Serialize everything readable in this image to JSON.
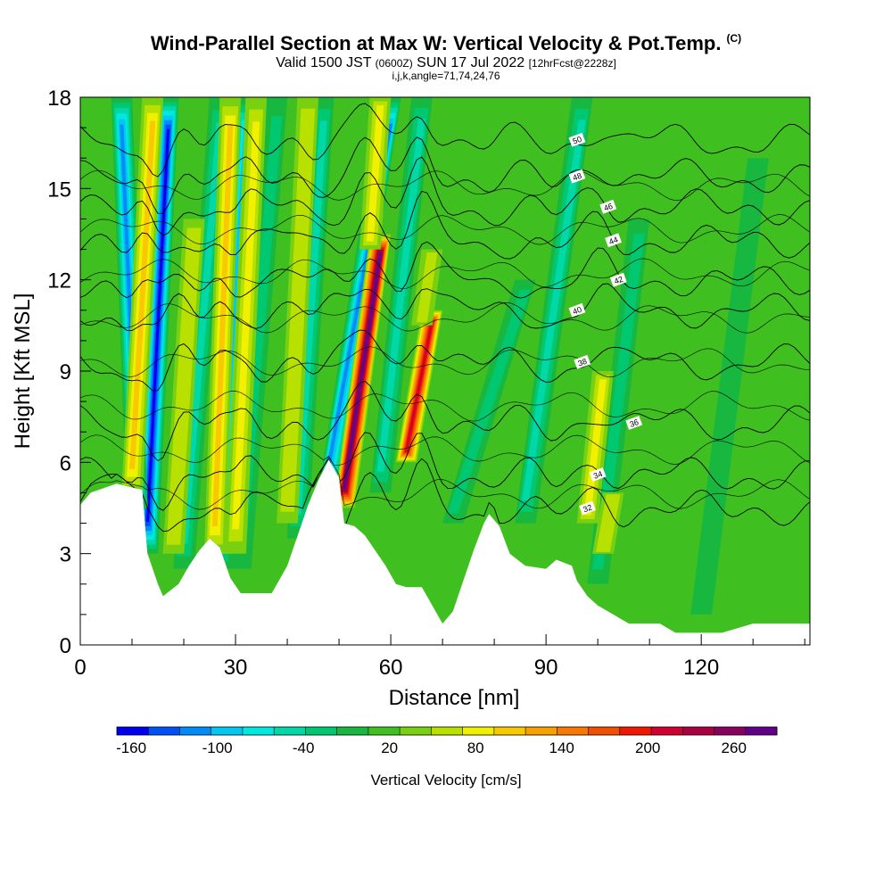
{
  "title": "Wind-Parallel Section at Max W: Vertical Velocity & Pot.Temp.",
  "title_tag": "(C)",
  "subtitle": {
    "valid_a": "Valid 1500 JST",
    "zulu": "(0600Z)",
    "valid_b": "SUN 17 Jul 2022",
    "forecast": "[12hrFcst@2228z]"
  },
  "params": "i,j,k,angle=71,74,24,76",
  "chart_data": {
    "type": "heatmap",
    "xlabel": "Distance [nm]",
    "ylabel": "Height [Kft MSL]",
    "xlim": [
      0,
      141
    ],
    "ylim": [
      0,
      18
    ],
    "x_ticks": [
      0,
      30,
      60,
      90,
      120
    ],
    "y_ticks": [
      0,
      3,
      6,
      9,
      12,
      15,
      18
    ],
    "colorbar": {
      "label": "Vertical Velocity [cm/s]",
      "range": [
        -170,
        290
      ],
      "tick_values": [
        -160,
        -100,
        -40,
        20,
        80,
        140,
        200,
        260
      ],
      "tick_labels": [
        "-160",
        "-100",
        "-40",
        "20",
        "80",
        "140",
        "200",
        "260"
      ],
      "colors": [
        "#0000f0",
        "#0050f8",
        "#008cf8",
        "#00c8f0",
        "#00e8e0",
        "#00d8a8",
        "#00c870",
        "#18b840",
        "#40c020",
        "#78d010",
        "#b8e000",
        "#f0f000",
        "#f8c800",
        "#f8a000",
        "#f87800",
        "#f05000",
        "#f01800",
        "#d00030",
        "#a80040",
        "#880060",
        "#600088"
      ]
    },
    "terrain": [
      {
        "x": 0,
        "h": 4.6
      },
      {
        "x": 2,
        "h": 5.0
      },
      {
        "x": 7,
        "h": 5.3
      },
      {
        "x": 12,
        "h": 5.1
      },
      {
        "x": 13,
        "h": 3.0
      },
      {
        "x": 15,
        "h": 2.0
      },
      {
        "x": 16,
        "h": 1.6
      },
      {
        "x": 19,
        "h": 2.0
      },
      {
        "x": 21,
        "h": 2.6
      },
      {
        "x": 23,
        "h": 3.1
      },
      {
        "x": 25,
        "h": 3.5
      },
      {
        "x": 27,
        "h": 3.2
      },
      {
        "x": 29,
        "h": 2.2
      },
      {
        "x": 31,
        "h": 1.7
      },
      {
        "x": 37,
        "h": 1.7
      },
      {
        "x": 40,
        "h": 2.6
      },
      {
        "x": 42,
        "h": 3.6
      },
      {
        "x": 44,
        "h": 4.6
      },
      {
        "x": 46,
        "h": 5.4
      },
      {
        "x": 48,
        "h": 6.1
      },
      {
        "x": 50,
        "h": 5.5
      },
      {
        "x": 51,
        "h": 4.0
      },
      {
        "x": 53,
        "h": 3.9
      },
      {
        "x": 55,
        "h": 3.6
      },
      {
        "x": 57,
        "h": 3.1
      },
      {
        "x": 59,
        "h": 2.6
      },
      {
        "x": 61,
        "h": 2.0
      },
      {
        "x": 63,
        "h": 1.9
      },
      {
        "x": 66,
        "h": 1.9
      },
      {
        "x": 67,
        "h": 1.6
      },
      {
        "x": 69,
        "h": 1.0
      },
      {
        "x": 70,
        "h": 0.7
      },
      {
        "x": 72,
        "h": 1.1
      },
      {
        "x": 74,
        "h": 2.1
      },
      {
        "x": 76,
        "h": 3.1
      },
      {
        "x": 78,
        "h": 4.0
      },
      {
        "x": 79,
        "h": 4.3
      },
      {
        "x": 81,
        "h": 3.9
      },
      {
        "x": 83,
        "h": 3.0
      },
      {
        "x": 86,
        "h": 2.6
      },
      {
        "x": 90,
        "h": 2.5
      },
      {
        "x": 92,
        "h": 2.8
      },
      {
        "x": 95,
        "h": 2.6
      },
      {
        "x": 96,
        "h": 2.1
      },
      {
        "x": 98,
        "h": 1.6
      },
      {
        "x": 100,
        "h": 1.3
      },
      {
        "x": 103,
        "h": 1.0
      },
      {
        "x": 106,
        "h": 0.7
      },
      {
        "x": 112,
        "h": 0.7
      },
      {
        "x": 115,
        "h": 0.4
      },
      {
        "x": 124,
        "h": 0.4
      },
      {
        "x": 130,
        "h": 0.7
      },
      {
        "x": 141,
        "h": 0.7
      }
    ],
    "background_w": 15,
    "w_features": [
      {
        "x0": 13,
        "x1": 17,
        "y0": 3,
        "y1": 18,
        "w": -150
      },
      {
        "x0": 11,
        "x1": 8,
        "y0": 4.5,
        "y1": 18,
        "w": -110
      },
      {
        "x0": 20,
        "x1": 27,
        "y0": 2.5,
        "y1": 18,
        "w": -60
      },
      {
        "x0": 27,
        "x1": 32,
        "y0": 2.5,
        "y1": 18,
        "w": -90
      },
      {
        "x0": 31,
        "x1": 38,
        "y0": 2.5,
        "y1": 18,
        "w": -30
      },
      {
        "x0": 42,
        "x1": 47,
        "y0": 3.5,
        "y1": 18,
        "w": -50
      },
      {
        "x0": 48,
        "x1": 60,
        "y0": 5,
        "y1": 18,
        "w": -110
      },
      {
        "x0": 58,
        "x1": 66,
        "y0": 5,
        "y1": 18,
        "w": -50
      },
      {
        "x0": 72,
        "x1": 86,
        "y0": 4,
        "y1": 12,
        "w": -20
      },
      {
        "x0": 86,
        "x1": 97,
        "y0": 4,
        "y1": 18,
        "w": -60
      },
      {
        "x0": 100,
        "x1": 108,
        "y0": 2,
        "y1": 14,
        "w": -25
      },
      {
        "x0": 120,
        "x1": 131,
        "y0": 1,
        "y1": 16,
        "w": -15
      },
      {
        "x0": 10,
        "x1": 14,
        "y0": 5,
        "y1": 18,
        "w": 95
      },
      {
        "x0": 18,
        "x1": 22,
        "y0": 3,
        "y1": 14,
        "w": 70
      },
      {
        "x0": 26,
        "x1": 29,
        "y0": 3,
        "y1": 18,
        "w": 110
      },
      {
        "x0": 30,
        "x1": 34,
        "y0": 3,
        "y1": 18,
        "w": 90
      },
      {
        "x0": 40,
        "x1": 44,
        "y0": 4,
        "y1": 18,
        "w": 70
      },
      {
        "x0": 51,
        "x1": 58,
        "y0": 4.5,
        "y1": 13.5,
        "w": 280
      },
      {
        "x0": 56,
        "x1": 58,
        "y0": 13,
        "y1": 18,
        "w": 90
      },
      {
        "x0": 63,
        "x1": 68,
        "y0": 6,
        "y1": 11,
        "w": 210
      },
      {
        "x0": 66,
        "x1": 68,
        "y0": 10.5,
        "y1": 13,
        "w": 60
      },
      {
        "x0": 98,
        "x1": 101,
        "y0": 4,
        "y1": 9,
        "w": 85
      },
      {
        "x0": 101,
        "x1": 103,
        "y0": 3,
        "y1": 5,
        "w": 70
      }
    ],
    "isentropes": [
      {
        "theta": 32,
        "y": 4.5,
        "label_x": 98
      },
      {
        "theta": 34,
        "y": 5.6,
        "label_x": 100
      },
      {
        "theta": 36,
        "y": 7.3,
        "label_x": 107
      },
      {
        "theta": 38,
        "y": 9.3,
        "label_x": 97
      },
      {
        "theta": 40,
        "y": 11.0,
        "label_x": 96
      },
      {
        "theta": 42,
        "y": 12.0,
        "label_x": 104
      },
      {
        "theta": 44,
        "y": 13.3,
        "label_x": 103
      },
      {
        "theta": 46,
        "y": 14.4,
        "label_x": 102
      },
      {
        "theta": 48,
        "y": 15.4,
        "label_x": 96
      },
      {
        "theta": 50,
        "y": 16.6,
        "label_x": 96
      }
    ]
  }
}
